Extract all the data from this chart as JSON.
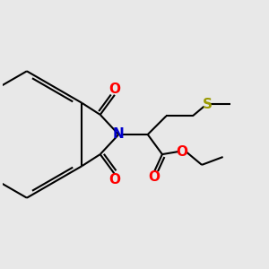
{
  "bg_color": "#e8e8e8",
  "bond_color": "#000000",
  "N_color": "#0000cc",
  "O_color": "#ff0000",
  "S_color": "#999900",
  "lw": 1.5,
  "figsize": [
    3.0,
    3.0
  ],
  "dpi": 100,
  "xlim": [
    0,
    10
  ],
  "ylim": [
    0,
    10
  ]
}
